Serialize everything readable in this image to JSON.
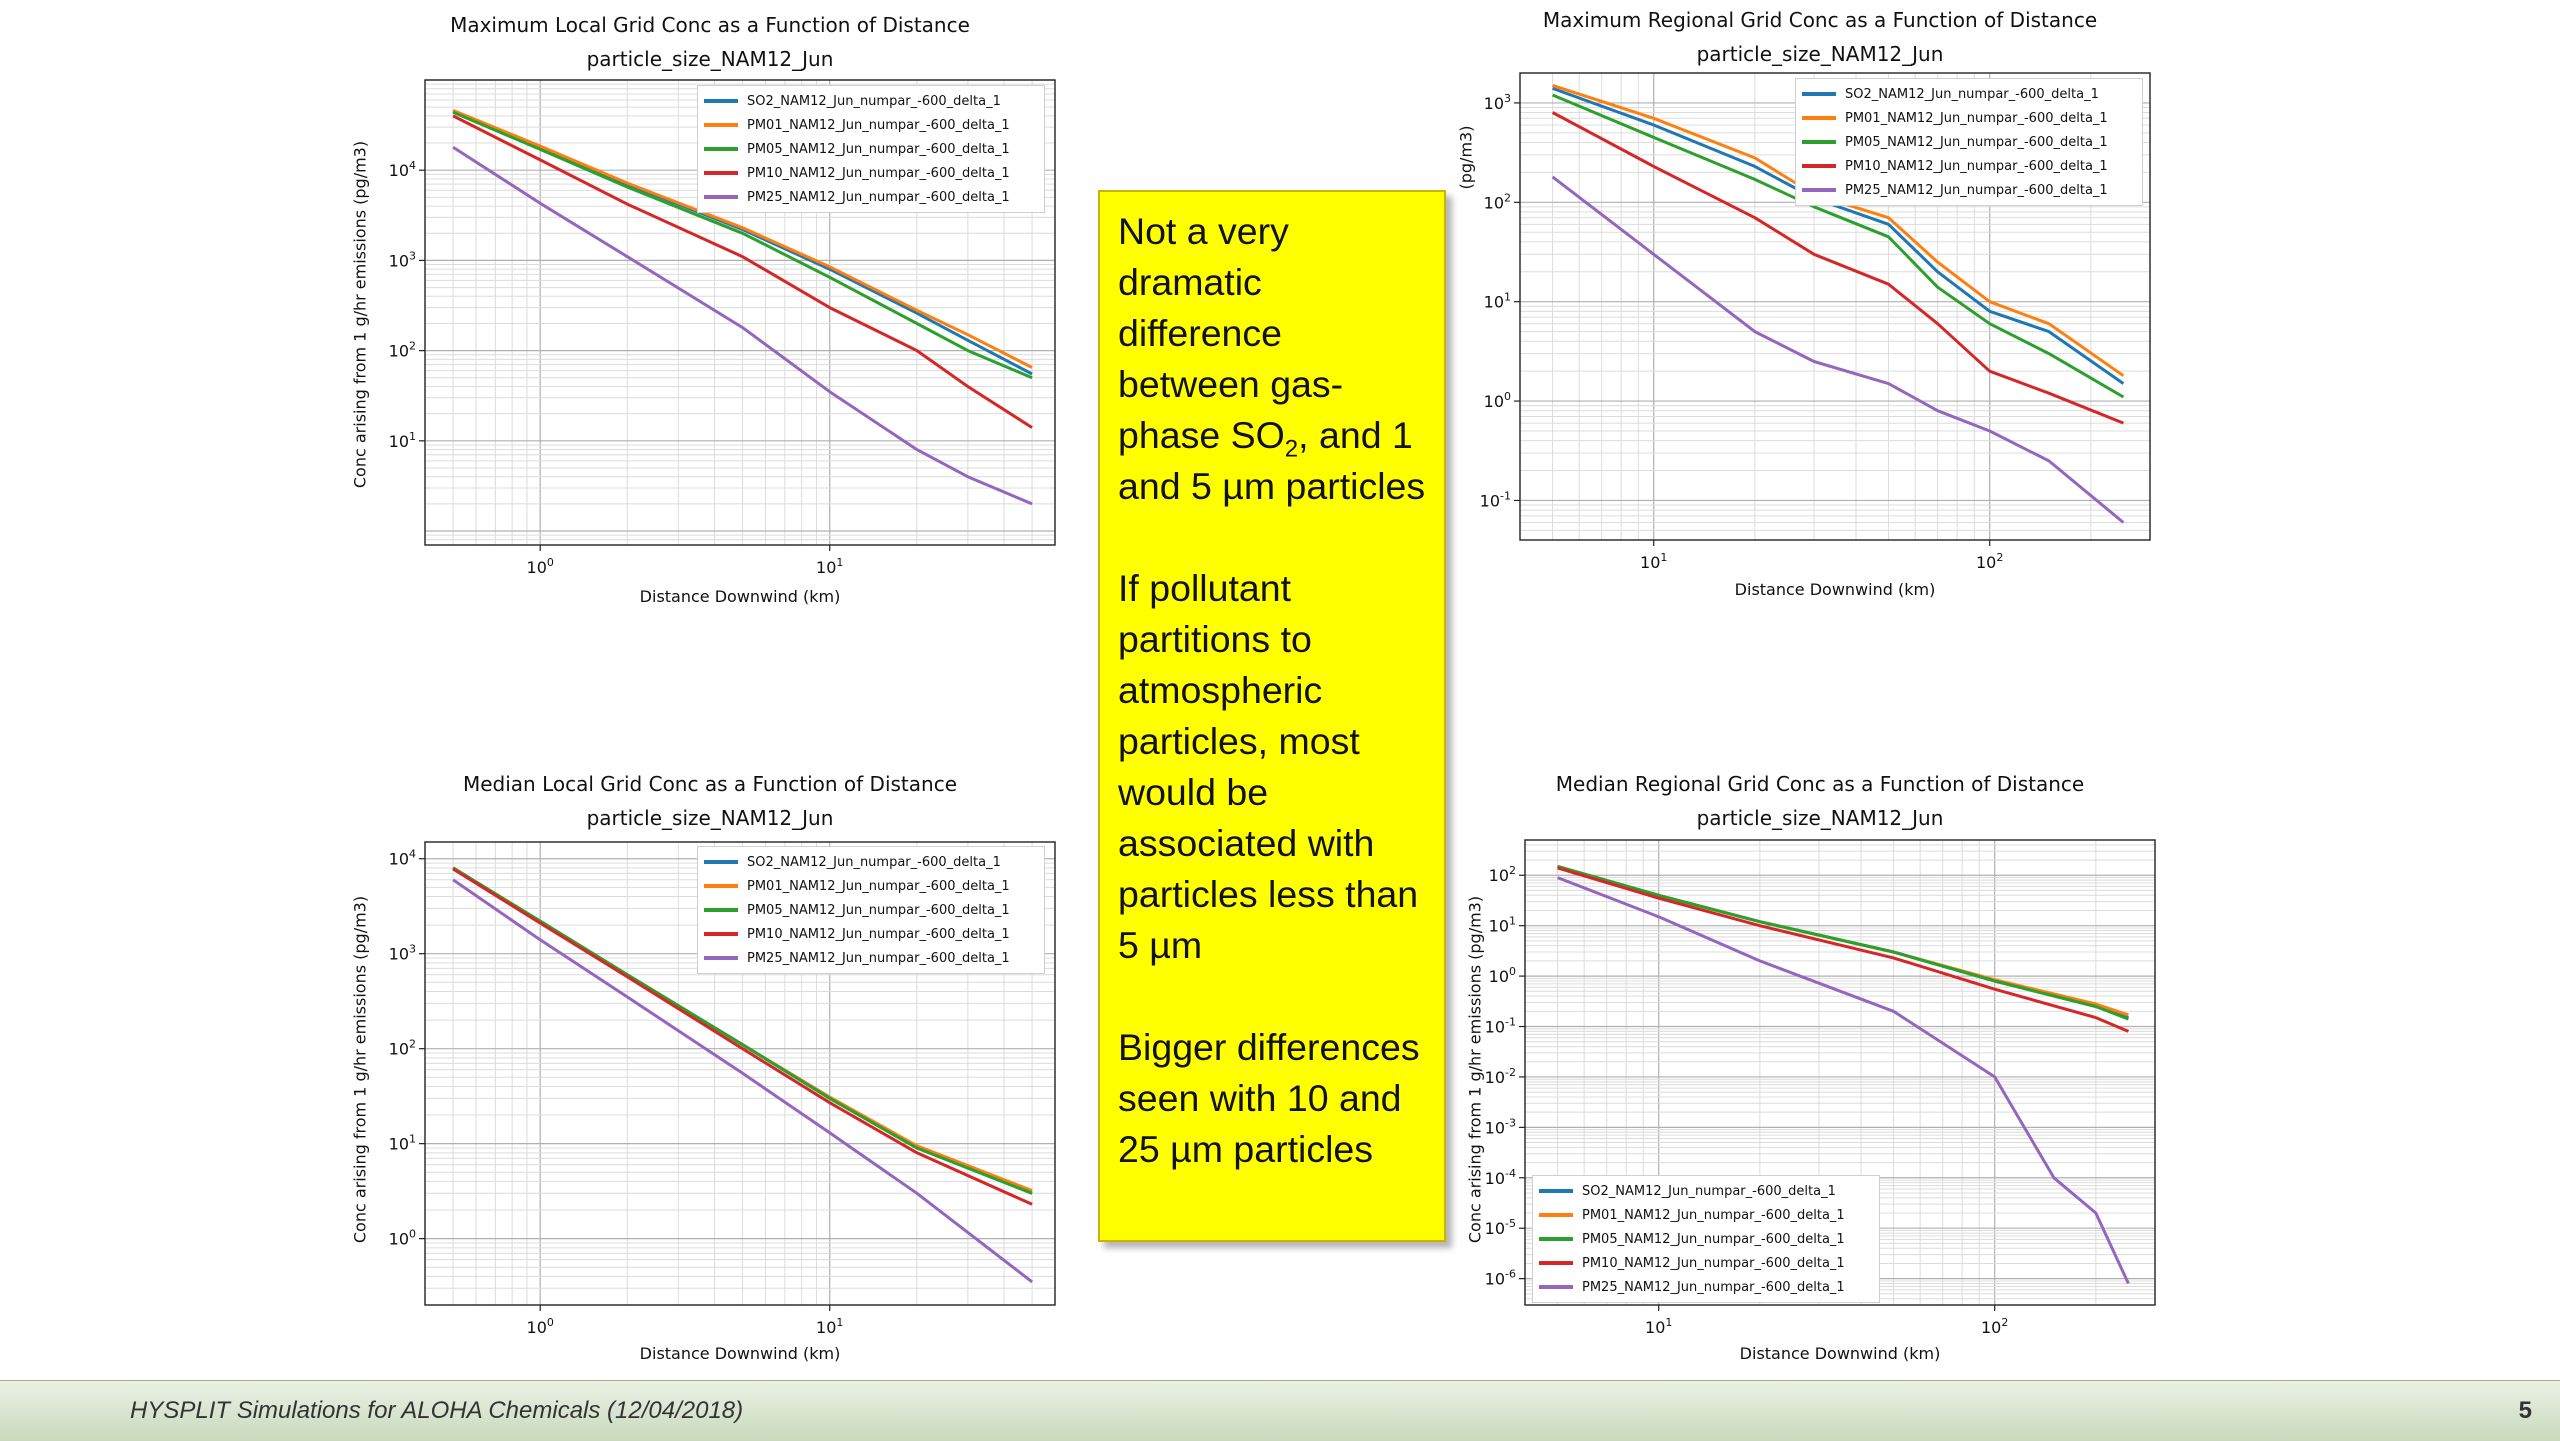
{
  "slide": {
    "footer_text": "HYSPLIT Simulations for ALOHA Chemicals (12/04/2018)",
    "page_number": "5"
  },
  "note": {
    "para1_before": "Not a very dramatic difference between gas-phase SO",
    "para1_sub": "2",
    "para1_after": ", and 1 and 5 µm particles",
    "para2": "If pollutant partitions to atmospheric particles, most would be associated with particles less than 5 µm",
    "para3": "Bigger differences seen with 10 and 25 µm particles"
  },
  "chart_data": [
    {
      "type": "line",
      "title": "Maximum Local Grid Conc as a Function of Distance",
      "subtitle": "particle_size_NAM12_Jun",
      "xlabel": "Distance Downwind (km)",
      "ylabel": "Conc arising from 1 g/hr emissions (pg/m3)",
      "x_scale": "log",
      "y_scale": "log",
      "xlim": [
        0.4,
        60
      ],
      "ylim": [
        0.7,
        100000
      ],
      "x_ticks": [
        1,
        10
      ],
      "x_tick_labels": [
        "10^0",
        "10^1"
      ],
      "y_ticks": [
        10,
        100,
        1000,
        10000
      ],
      "y_tick_labels": [
        "10^1",
        "10^2",
        "10^3",
        "10^4"
      ],
      "grid": true,
      "legend_position": "top-right",
      "series": [
        {
          "name": "SO2_NAM12_Jun_numpar_-600_delta_1",
          "color": "#1f77b4",
          "x": [
            0.5,
            1,
            2,
            5,
            10,
            20,
            30,
            50
          ],
          "y": [
            45000,
            18000,
            7000,
            2200,
            800,
            260,
            130,
            55
          ]
        },
        {
          "name": "PM01_NAM12_Jun_numpar_-600_delta_1",
          "color": "#ff7f0e",
          "x": [
            0.5,
            1,
            2,
            5,
            10,
            20,
            30,
            50
          ],
          "y": [
            46000,
            18500,
            7200,
            2300,
            850,
            280,
            150,
            65
          ]
        },
        {
          "name": "PM05_NAM12_Jun_numpar_-600_delta_1",
          "color": "#2ca02c",
          "x": [
            0.5,
            1,
            2,
            5,
            10,
            20,
            30,
            50
          ],
          "y": [
            44000,
            17000,
            6500,
            2000,
            650,
            200,
            100,
            50
          ]
        },
        {
          "name": "PM10_NAM12_Jun_numpar_-600_delta_1",
          "color": "#d62728",
          "x": [
            0.5,
            1,
            2,
            5,
            10,
            20,
            30,
            50
          ],
          "y": [
            40000,
            13000,
            4200,
            1100,
            300,
            100,
            40,
            14
          ]
        },
        {
          "name": "PM25_NAM12_Jun_numpar_-600_delta_1",
          "color": "#9467bd",
          "x": [
            0.5,
            1,
            2,
            5,
            10,
            20,
            30,
            50
          ],
          "y": [
            18000,
            4300,
            1100,
            180,
            35,
            8,
            4,
            2
          ]
        }
      ]
    },
    {
      "type": "line",
      "title": "Maximum Regional Grid Conc as a Function of Distance",
      "subtitle": "particle_size_NAM12_Jun",
      "xlabel": "Distance Downwind (km)",
      "ylabel": "(pg/m3)",
      "x_scale": "log",
      "y_scale": "log",
      "xlim": [
        4,
        300
      ],
      "ylim": [
        0.04,
        2000
      ],
      "x_ticks": [
        10,
        100
      ],
      "x_tick_labels": [
        "10^1",
        "10^2"
      ],
      "y_ticks": [
        0.1,
        1,
        10,
        100,
        1000
      ],
      "y_tick_labels": [
        "10^-1",
        "10^0",
        "10^1",
        "10^2",
        "10^3"
      ],
      "grid": true,
      "legend_position": "top-right",
      "series": [
        {
          "name": "SO2_NAM12_Jun_numpar_-600_delta_1",
          "color": "#1f77b4",
          "x": [
            5,
            10,
            20,
            30,
            50,
            70,
            100,
            150,
            250
          ],
          "y": [
            1400,
            600,
            230,
            110,
            60,
            20,
            8,
            5,
            1.5
          ]
        },
        {
          "name": "PM01_NAM12_Jun_numpar_-600_delta_1",
          "color": "#ff7f0e",
          "x": [
            5,
            10,
            20,
            30,
            50,
            70,
            100,
            150,
            250
          ],
          "y": [
            1500,
            700,
            280,
            120,
            70,
            25,
            10,
            6,
            1.8
          ]
        },
        {
          "name": "PM05_NAM12_Jun_numpar_-600_delta_1",
          "color": "#2ca02c",
          "x": [
            5,
            10,
            20,
            30,
            50,
            70,
            100,
            150,
            250
          ],
          "y": [
            1200,
            450,
            170,
            90,
            45,
            14,
            6,
            3,
            1.1
          ]
        },
        {
          "name": "PM10_NAM12_Jun_numpar_-600_delta_1",
          "color": "#d62728",
          "x": [
            5,
            10,
            20,
            30,
            50,
            70,
            100,
            150,
            250
          ],
          "y": [
            800,
            230,
            70,
            30,
            15,
            6,
            2,
            1.2,
            0.6
          ]
        },
        {
          "name": "PM25_NAM12_Jun_numpar_-600_delta_1",
          "color": "#9467bd",
          "x": [
            5,
            10,
            20,
            30,
            50,
            70,
            100,
            150,
            250
          ],
          "y": [
            180,
            30,
            5,
            2.5,
            1.5,
            0.8,
            0.5,
            0.25,
            0.06
          ]
        }
      ]
    },
    {
      "type": "line",
      "title": "Median Local Grid Conc as a Function of Distance",
      "subtitle": "particle_size_NAM12_Jun",
      "xlabel": "Distance Downwind (km)",
      "ylabel": "Conc arising from 1 g/hr emissions (pg/m3)",
      "x_scale": "log",
      "y_scale": "log",
      "xlim": [
        0.4,
        60
      ],
      "ylim": [
        0.2,
        15000
      ],
      "x_ticks": [
        1,
        10
      ],
      "x_tick_labels": [
        "10^0",
        "10^1"
      ],
      "y_ticks": [
        1,
        10,
        100,
        1000,
        10000
      ],
      "y_tick_labels": [
        "10^0",
        "10^1",
        "10^2",
        "10^3",
        "10^4"
      ],
      "grid": true,
      "legend_position": "top-right",
      "series": [
        {
          "name": "SO2_NAM12_Jun_numpar_-600_delta_1",
          "color": "#1f77b4",
          "x": [
            0.5,
            1,
            2,
            5,
            10,
            20,
            50
          ],
          "y": [
            8000,
            2200,
            600,
            110,
            30,
            9,
            3
          ]
        },
        {
          "name": "PM01_NAM12_Jun_numpar_-600_delta_1",
          "color": "#ff7f0e",
          "x": [
            0.5,
            1,
            2,
            5,
            10,
            20,
            50
          ],
          "y": [
            8000,
            2200,
            600,
            110,
            31,
            9.5,
            3.2
          ]
        },
        {
          "name": "PM05_NAM12_Jun_numpar_-600_delta_1",
          "color": "#2ca02c",
          "x": [
            0.5,
            1,
            2,
            5,
            10,
            20,
            50
          ],
          "y": [
            8000,
            2200,
            600,
            110,
            30,
            9,
            3
          ]
        },
        {
          "name": "PM10_NAM12_Jun_numpar_-600_delta_1",
          "color": "#d62728",
          "x": [
            0.5,
            1,
            2,
            5,
            10,
            20,
            50
          ],
          "y": [
            7800,
            2100,
            570,
            100,
            27,
            8,
            2.3
          ]
        },
        {
          "name": "PM25_NAM12_Jun_numpar_-600_delta_1",
          "color": "#9467bd",
          "x": [
            0.5,
            1,
            2,
            5,
            10,
            20,
            50
          ],
          "y": [
            6000,
            1400,
            350,
            55,
            13,
            3,
            0.35
          ]
        }
      ]
    },
    {
      "type": "line",
      "title": "Median Regional Grid Conc as a Function of Distance",
      "subtitle": "particle_size_NAM12_Jun",
      "xlabel": "Distance Downwind (km)",
      "ylabel": "Conc arising from 1 g/hr emissions (pg/m3)",
      "x_scale": "log",
      "y_scale": "log",
      "xlim": [
        4,
        300
      ],
      "ylim": [
        3e-07,
        500
      ],
      "x_ticks": [
        10,
        100
      ],
      "x_tick_labels": [
        "10^1",
        "10^2"
      ],
      "y_ticks": [
        1e-06,
        1e-05,
        0.0001,
        0.001,
        0.01,
        0.1,
        1,
        10,
        100
      ],
      "y_tick_labels": [
        "10^-6",
        "10^-5",
        "10^-4",
        "10^-3",
        "10^-2",
        "10^-1",
        "10^0",
        "10^1",
        "10^2"
      ],
      "grid": true,
      "legend_position": "bottom-left",
      "series": [
        {
          "name": "SO2_NAM12_Jun_numpar_-600_delta_1",
          "color": "#1f77b4",
          "x": [
            5,
            10,
            20,
            50,
            100,
            200,
            250
          ],
          "y": [
            150,
            40,
            12,
            3,
            0.8,
            0.25,
            0.15
          ]
        },
        {
          "name": "PM01_NAM12_Jun_numpar_-600_delta_1",
          "color": "#ff7f0e",
          "x": [
            5,
            10,
            20,
            50,
            100,
            200,
            250
          ],
          "y": [
            150,
            40,
            12,
            3,
            0.85,
            0.28,
            0.17
          ]
        },
        {
          "name": "PM05_NAM12_Jun_numpar_-600_delta_1",
          "color": "#2ca02c",
          "x": [
            5,
            10,
            20,
            50,
            100,
            200,
            250
          ],
          "y": [
            150,
            40,
            12,
            3,
            0.8,
            0.25,
            0.14
          ]
        },
        {
          "name": "PM10_NAM12_Jun_numpar_-600_delta_1",
          "color": "#d62728",
          "x": [
            5,
            10,
            20,
            50,
            100,
            200,
            250
          ],
          "y": [
            140,
            35,
            10,
            2.3,
            0.55,
            0.15,
            0.08
          ]
        },
        {
          "name": "PM25_NAM12_Jun_numpar_-600_delta_1",
          "color": "#9467bd",
          "x": [
            5,
            10,
            20,
            50,
            100,
            150,
            200,
            250
          ],
          "y": [
            90,
            15,
            2,
            0.2,
            0.01,
            0.0001,
            2e-05,
            8e-07
          ]
        }
      ]
    }
  ]
}
